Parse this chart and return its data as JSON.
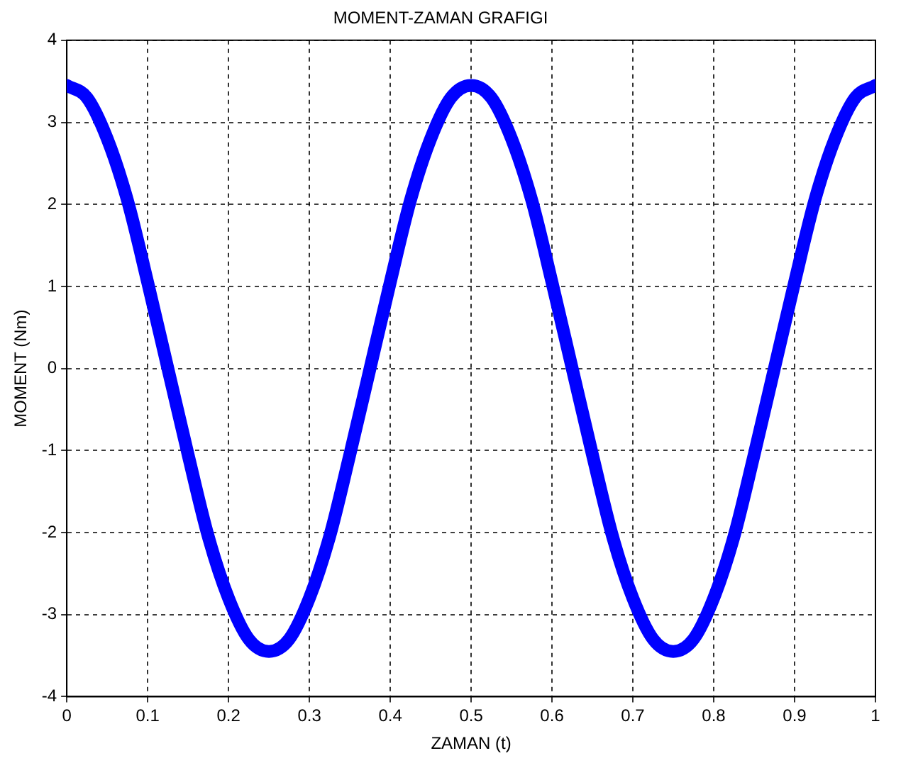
{
  "chart_data": {
    "type": "line",
    "title": "MOMENT-ZAMAN GRAFIGI",
    "xlabel": "ZAMAN (t)",
    "ylabel": "MOMENT (Nm)",
    "x": [
      0,
      0.025,
      0.05,
      0.075,
      0.1,
      0.125,
      0.15,
      0.175,
      0.2,
      0.225,
      0.25,
      0.275,
      0.3,
      0.325,
      0.35,
      0.375,
      0.4,
      0.425,
      0.45,
      0.475,
      0.5,
      0.525,
      0.55,
      0.575,
      0.6,
      0.625,
      0.65,
      0.675,
      0.7,
      0.725,
      0.75,
      0.775,
      0.8,
      0.825,
      0.85,
      0.875,
      0.9,
      0.925,
      0.95,
      0.975,
      1
    ],
    "series": [
      {
        "color": "#0000ff",
        "values": [
          3.45,
          3.3,
          2.8,
          2.05,
          1.05,
          0,
          -1.05,
          -2.05,
          -2.8,
          -3.3,
          -3.45,
          -3.3,
          -2.8,
          -2.05,
          -1.05,
          0,
          1.05,
          2.05,
          2.8,
          3.3,
          3.45,
          3.3,
          2.8,
          2.05,
          1.05,
          0,
          -1.05,
          -2.05,
          -2.8,
          -3.3,
          -3.45,
          -3.3,
          -2.8,
          -2.05,
          -1.05,
          0,
          1.05,
          2.05,
          2.8,
          3.3,
          3.45
        ]
      }
    ],
    "xlim": [
      0,
      1
    ],
    "xticks": [
      0,
      0.1,
      0.2,
      0.3,
      0.4,
      0.5,
      0.6,
      0.7,
      0.8,
      0.9,
      1
    ],
    "ylim": [
      -4,
      4
    ],
    "yticks": [
      -4,
      -3,
      -2,
      -1,
      0,
      1,
      2,
      3,
      4
    ],
    "grid": true,
    "legend": false,
    "marker": "none",
    "line_style": "solid"
  }
}
